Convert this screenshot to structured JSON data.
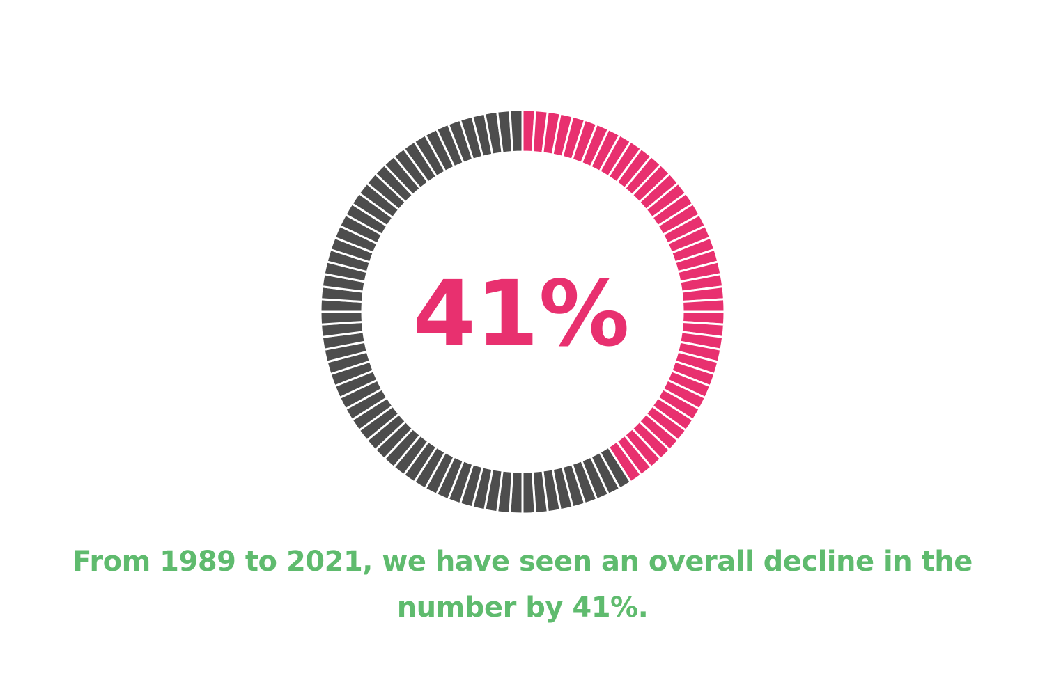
{
  "chart_data": {
    "type": "gauge",
    "values": [
      41
    ],
    "value_labels": [
      "41%"
    ],
    "color": "#e8306f",
    "rest_color": "#4d4d4d",
    "caption": "From 1989 to 2021, we have seen an overall decline in the number by 41%.",
    "caption_color": "#5fbb6e"
  }
}
